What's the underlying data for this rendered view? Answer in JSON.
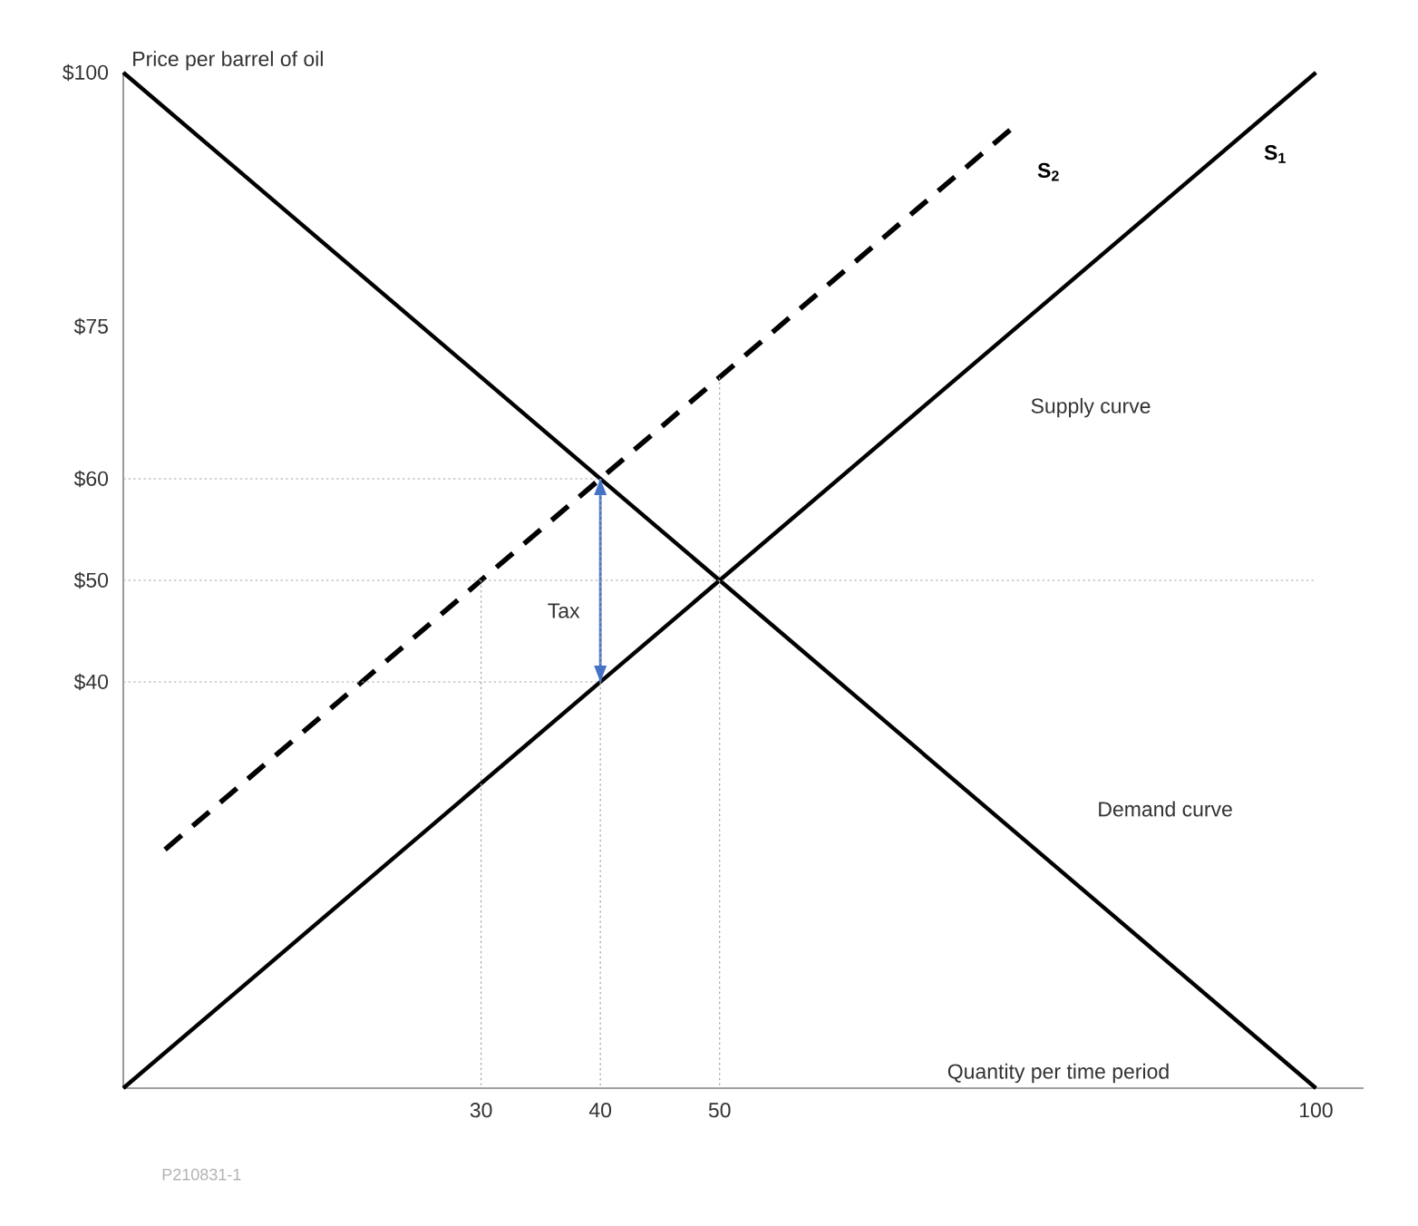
{
  "chart_data": {
    "type": "line",
    "ylabel": "Price per barrel of oil",
    "xlabel": "Quantity per time period",
    "xlim": [
      0,
      104
    ],
    "ylim": [
      0,
      100
    ],
    "xticks": [
      30,
      40,
      50,
      100
    ],
    "yticks": [
      {
        "value": 40,
        "label": "$40"
      },
      {
        "value": 50,
        "label": "$50"
      },
      {
        "value": 60,
        "label": "$60"
      },
      {
        "value": 75,
        "label": "$75"
      },
      {
        "value": 100,
        "label": "$100"
      }
    ],
    "series": [
      {
        "color": "#a6a6a6",
        "line_style": "dotted",
        "x": [
          0,
          40,
          40
        ],
        "values": [
          60,
          60,
          0
        ]
      },
      {
        "color": "#a6a6a6",
        "line_style": "dotted",
        "x": [
          0,
          100
        ],
        "values": [
          50,
          50
        ]
      },
      {
        "color": "#a6a6a6",
        "line_style": "dotted",
        "x": [
          0,
          40
        ],
        "values": [
          40,
          40
        ]
      },
      {
        "color": "#a6a6a6",
        "line_style": "dotted",
        "x": [
          30,
          30
        ],
        "values": [
          50,
          0
        ]
      },
      {
        "color": "#a6a6a6",
        "line_style": "dotted",
        "x": [
          50,
          50
        ],
        "values": [
          70,
          0
        ]
      },
      {
        "color": "#000000",
        "line_style": "solid",
        "x": [
          0,
          100
        ],
        "values": [
          100,
          0
        ]
      },
      {
        "name": "S$_{1}$",
        "color": "#000000",
        "line_style": "solid",
        "x": [
          0,
          100
        ],
        "values": [
          0,
          100
        ]
      },
      {
        "name": "S$_{2}$",
        "color": "#000000",
        "line_style": "dashed",
        "x": [
          3.5,
          74.5
        ],
        "values": [
          23.5,
          94.5
        ]
      },
      {
        "color": "#4472c4",
        "line_style": "solid",
        "x": [
          40,
          40
        ],
        "values": [
          40,
          60
        ]
      }
    ],
    "annotations": [
      "Tax",
      "Supply curve",
      "Demand curve",
      "P210831-1"
    ]
  }
}
